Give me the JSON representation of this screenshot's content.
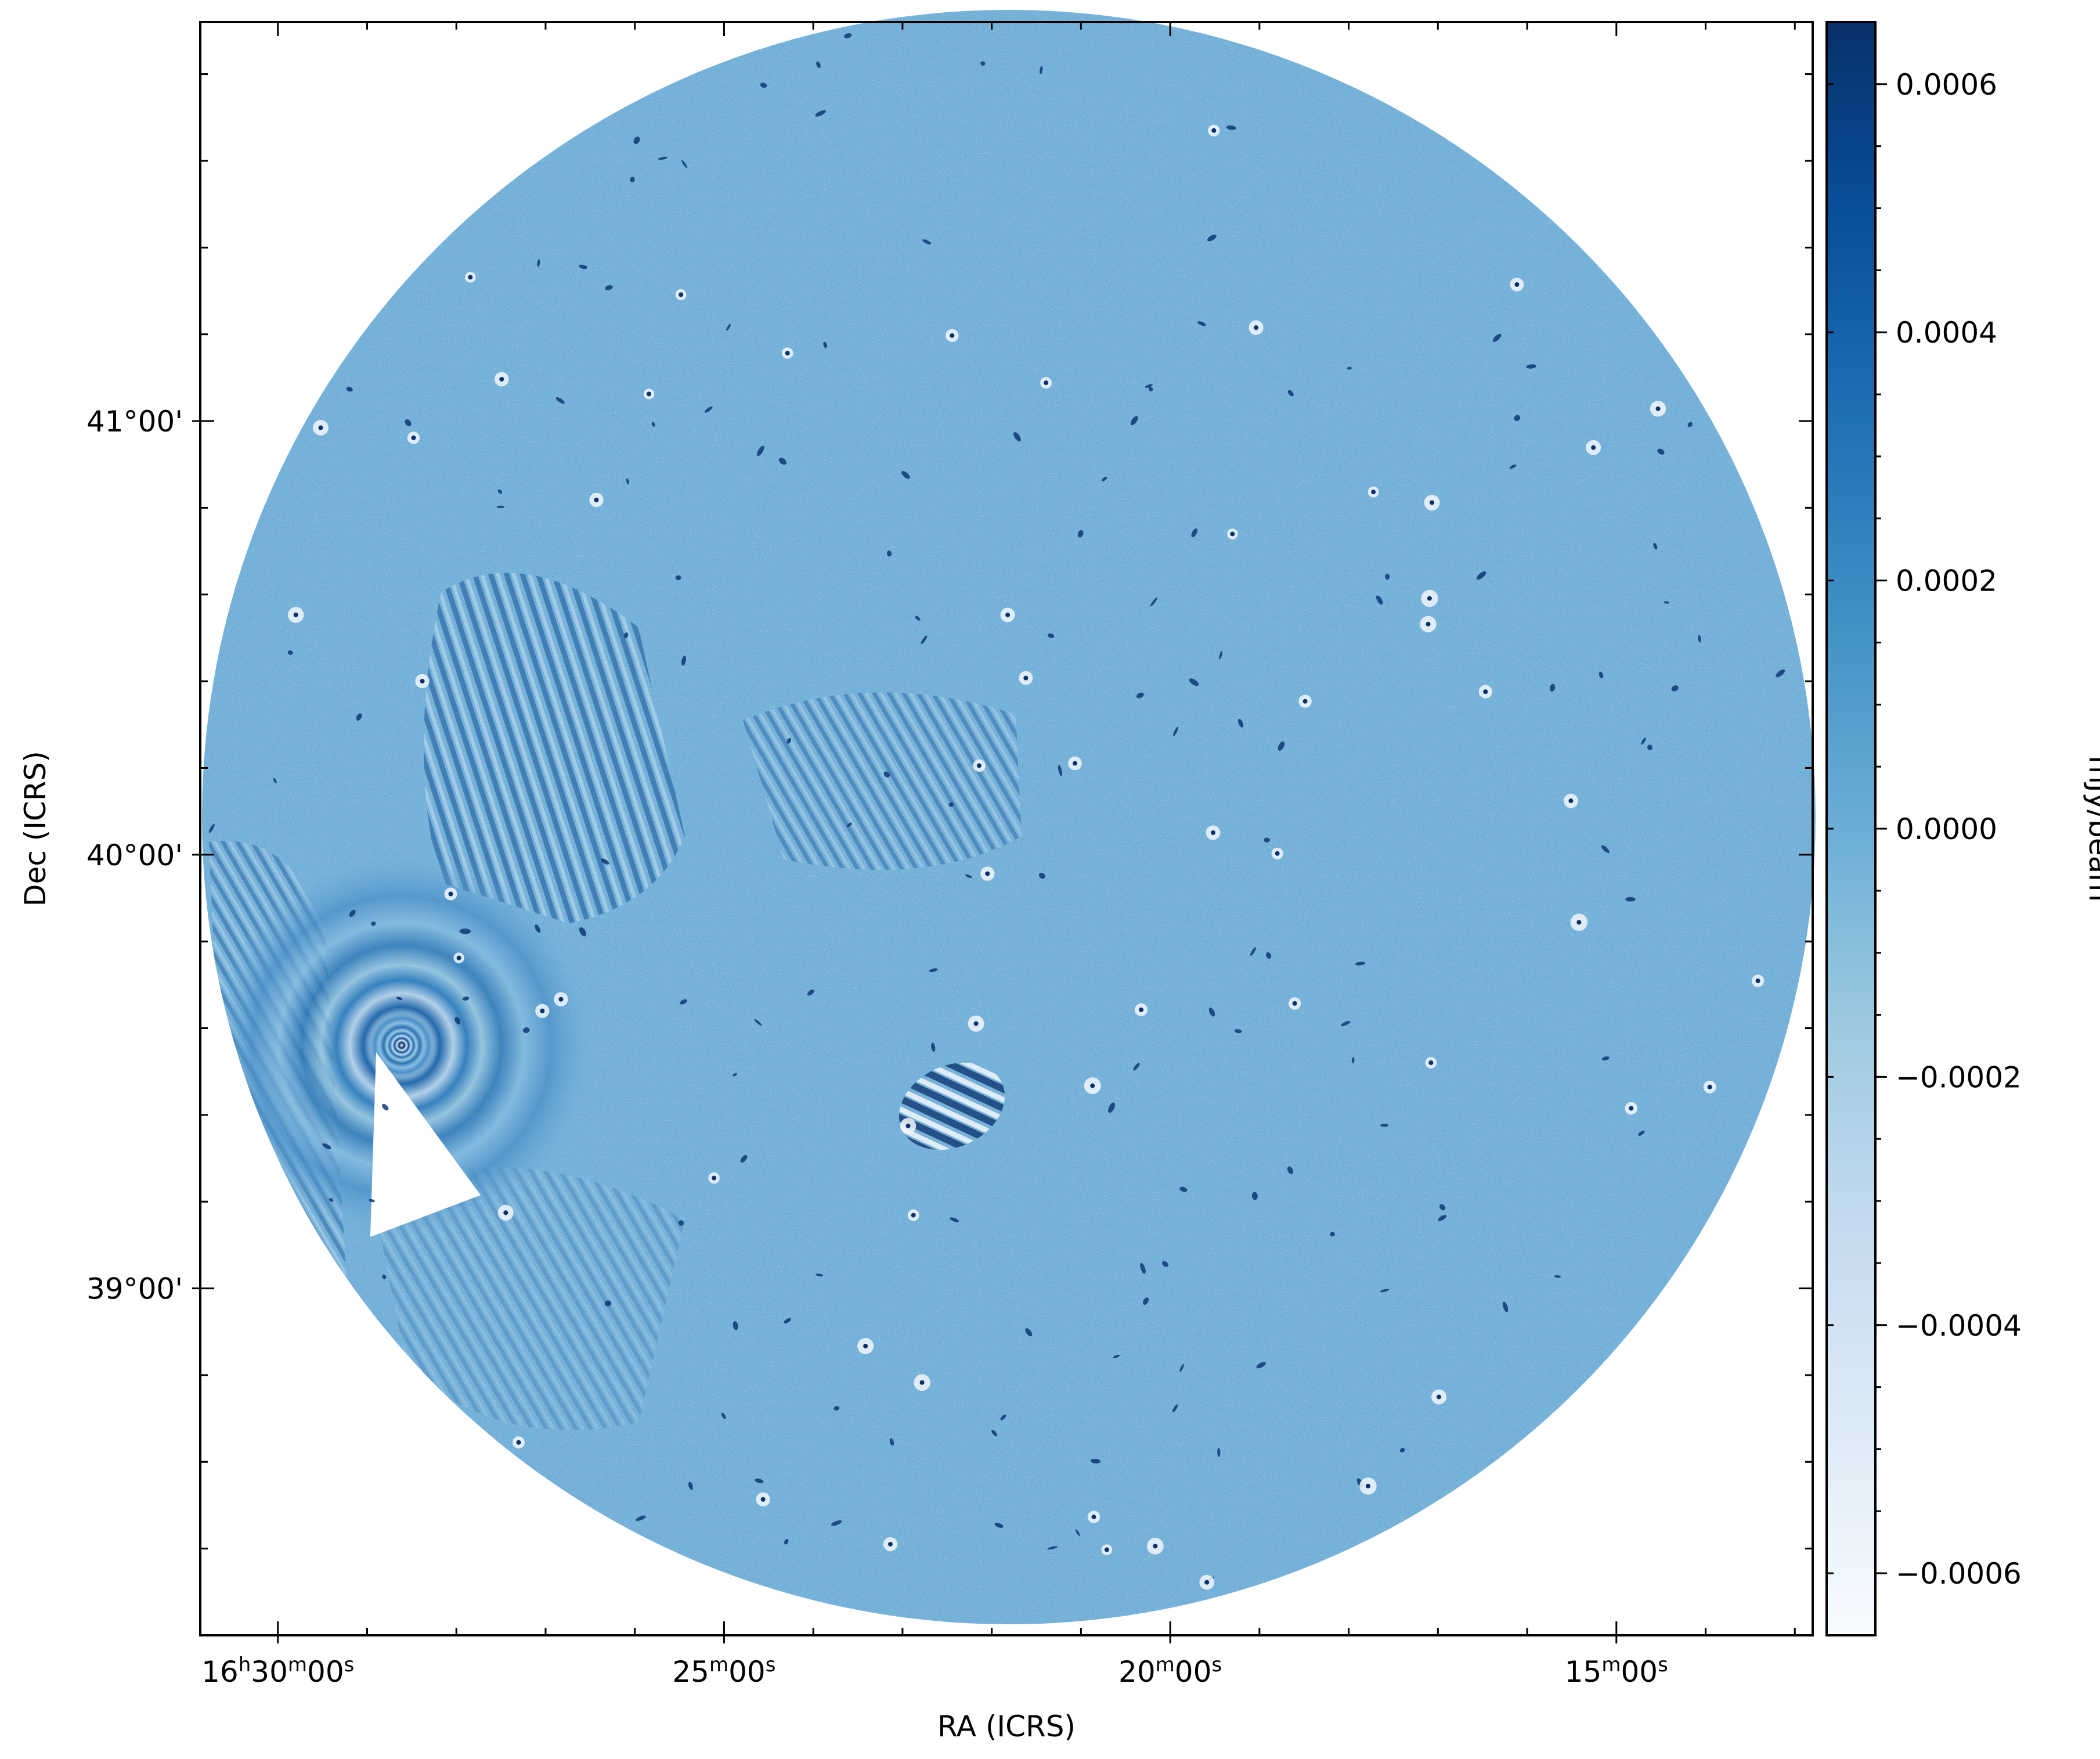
{
  "chart_data": {
    "type": "heatmap",
    "description_free": true,
    "xlabel": "RA (ICRS)",
    "ylabel": "Dec (ICRS)",
    "colorbar_label": "mJy/beam",
    "colormap": "Blues",
    "colormap_stops": [
      "#f7fbff",
      "#deebf7",
      "#c6dbef",
      "#9ecae1",
      "#6baed6",
      "#4292c6",
      "#2171b5",
      "#08519c",
      "#08306b"
    ],
    "background_color": "#6fadd6",
    "vmin": -0.00065,
    "vmax": 0.00065,
    "x_ticks": [
      {
        "value_min": 0,
        "label_html": "16<tspan baseline-shift=\"super\" font-size=\"70%\">h</tspan>30<tspan baseline-shift=\"super\" font-size=\"70%\">m</tspan>00<tspan baseline-shift=\"super\" font-size=\"70%\">s</tspan>",
        "label_parts": [
          "16",
          "h",
          "30",
          "m",
          "00",
          "s"
        ]
      },
      {
        "value_min": 5,
        "label_parts": [
          "25",
          "m",
          "00",
          "s"
        ]
      },
      {
        "value_min": 10,
        "label_parts": [
          "20",
          "m",
          "00",
          "s"
        ]
      },
      {
        "value_min": 15,
        "label_parts": [
          "15",
          "m",
          "00",
          "s"
        ]
      }
    ],
    "x_range_min": [
      -0.87,
      17.2
    ],
    "y_ticks": [
      {
        "value_deg": 39.0,
        "label": "39°00'"
      },
      {
        "value_deg": 40.0,
        "label": "40°00'"
      },
      {
        "value_deg": 41.0,
        "label": "41°00'"
      }
    ],
    "y_range_deg": [
      38.2,
      41.92
    ],
    "colorbar_ticks": [
      {
        "value": 0.0006,
        "label": "0.0006"
      },
      {
        "value": 0.0004,
        "label": "0.0004"
      },
      {
        "value": 0.0002,
        "label": "0.0002"
      },
      {
        "value": 0.0,
        "label": "0.0000"
      },
      {
        "value": -0.0002,
        "label": "−0.0002"
      },
      {
        "value": -0.0004,
        "label": "−0.0004"
      },
      {
        "value": -0.0006,
        "label": "−0.0006"
      }
    ],
    "grid": false,
    "legend": "none"
  }
}
